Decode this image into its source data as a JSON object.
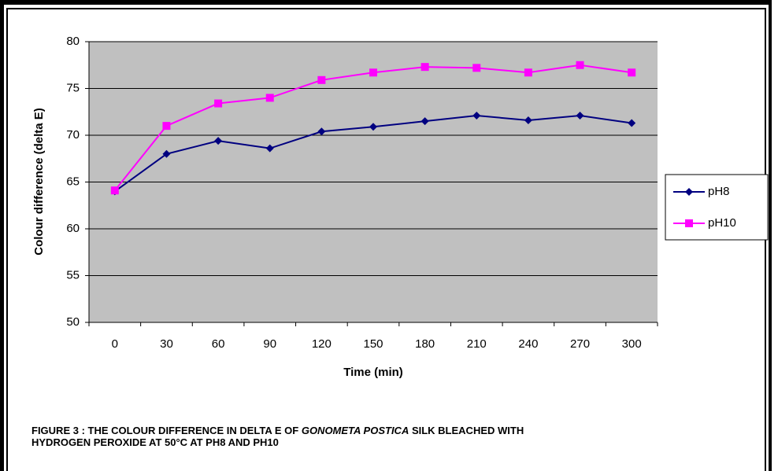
{
  "chart_data": {
    "type": "line",
    "y_label": "Colour difference (delta E)",
    "x_label": "Time (min)",
    "categories": [
      0,
      30,
      60,
      90,
      120,
      150,
      180,
      210,
      240,
      270,
      300
    ],
    "series": [
      {
        "name": "pH8",
        "color": "#000080",
        "marker": "diamond",
        "values": [
          64,
          68,
          69.4,
          68.6,
          70.4,
          70.9,
          71.5,
          72.1,
          71.6,
          72.1,
          71.3
        ]
      },
      {
        "name": "pH10",
        "color": "#ff00ff",
        "marker": "square",
        "values": [
          64.1,
          71,
          73.4,
          74,
          75.9,
          76.7,
          77.3,
          77.2,
          76.7,
          77.5,
          76.7
        ]
      }
    ],
    "ylim": [
      50,
      80
    ],
    "yticks": [
      50,
      55,
      60,
      65,
      70,
      75,
      80
    ],
    "grid": true,
    "legend": "right",
    "caption": [
      "FIGURE 3 : THE COLOUR DIFFERENCE IN DELTA E OF ",
      "GONOMETA POSTICA",
      " SILK BLEACHED WITH HYDROGEN PEROXIDE AT 50°C AT PH8 AND PH10"
    ]
  }
}
